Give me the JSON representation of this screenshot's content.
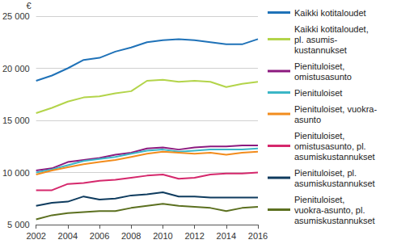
{
  "chart_data": {
    "type": "line",
    "ylabel": "€",
    "x": [
      2002,
      2003,
      2004,
      2005,
      2006,
      2007,
      2008,
      2009,
      2010,
      2011,
      2012,
      2013,
      2014,
      2015,
      2016
    ],
    "xlim": [
      2002,
      2016
    ],
    "xticks": [
      2002,
      2004,
      2006,
      2008,
      2010,
      2012,
      2014,
      2016
    ],
    "ylim": [
      5000,
      25000
    ],
    "yticks": [
      {
        "value": 5000,
        "label": "5 000"
      },
      {
        "value": 10000,
        "label": "10 000"
      },
      {
        "value": 15000,
        "label": "15 000"
      },
      {
        "value": 20000,
        "label": "20 000"
      },
      {
        "value": 25000,
        "label": "25 000"
      }
    ],
    "grid": true,
    "legend": "right",
    "series": [
      {
        "name": "Kaikki kotitaloudet",
        "color": "#1f72b8",
        "values": [
          18800,
          19300,
          20000,
          20800,
          21000,
          21600,
          22000,
          22500,
          22700,
          22800,
          22700,
          22500,
          22300,
          22300,
          22800
        ]
      },
      {
        "name": "Kaikki kotitaloudet,\npl. asumis-\nkustannukset",
        "color": "#b3d44a",
        "values": [
          15700,
          16200,
          16800,
          17200,
          17300,
          17600,
          17800,
          18800,
          18900,
          18700,
          18800,
          18700,
          18200,
          18500,
          18700
        ]
      },
      {
        "name": "Pienituloiset,\nomistusasunto",
        "color": "#8c1a7f",
        "values": [
          10200,
          10400,
          11000,
          11200,
          11400,
          11700,
          11900,
          12300,
          12400,
          12200,
          12400,
          12500,
          12500,
          12600,
          12600
        ]
      },
      {
        "name": "Pienituloiset",
        "color": "#3bb6c6",
        "values": [
          10000,
          10300,
          10700,
          11100,
          11300,
          11500,
          11800,
          12100,
          12200,
          12000,
          12100,
          12200,
          12200,
          12200,
          12300
        ]
      },
      {
        "name": "Pienituloiset, vuokra-\nasunto",
        "color": "#f28c1d",
        "values": [
          9800,
          10200,
          10500,
          10800,
          11000,
          11200,
          11500,
          11800,
          12000,
          11900,
          11800,
          11900,
          11700,
          11900,
          12000
        ]
      },
      {
        "name": "Pienituloiset,\nomistusasunto, pl.\nasumiskustannukset",
        "color": "#d5286c",
        "values": [
          8300,
          8300,
          8900,
          9000,
          9200,
          9300,
          9500,
          9700,
          9800,
          9400,
          9500,
          9800,
          9900,
          9900,
          10000
        ]
      },
      {
        "name": "Pienituloiset, pl.\nasumiskustannukset",
        "color": "#0e3b5e",
        "values": [
          6800,
          7100,
          7200,
          7700,
          7400,
          7500,
          7800,
          7900,
          8100,
          7700,
          7700,
          7600,
          7600,
          7600,
          7600
        ]
      },
      {
        "name": "Pienituloiset,\nvuokra-asunto, pl.\nasumiskustannukset",
        "color": "#5c7020",
        "values": [
          5500,
          5900,
          6100,
          6200,
          6300,
          6300,
          6600,
          6800,
          7000,
          6800,
          6700,
          6600,
          6300,
          6600,
          6700
        ]
      }
    ]
  }
}
